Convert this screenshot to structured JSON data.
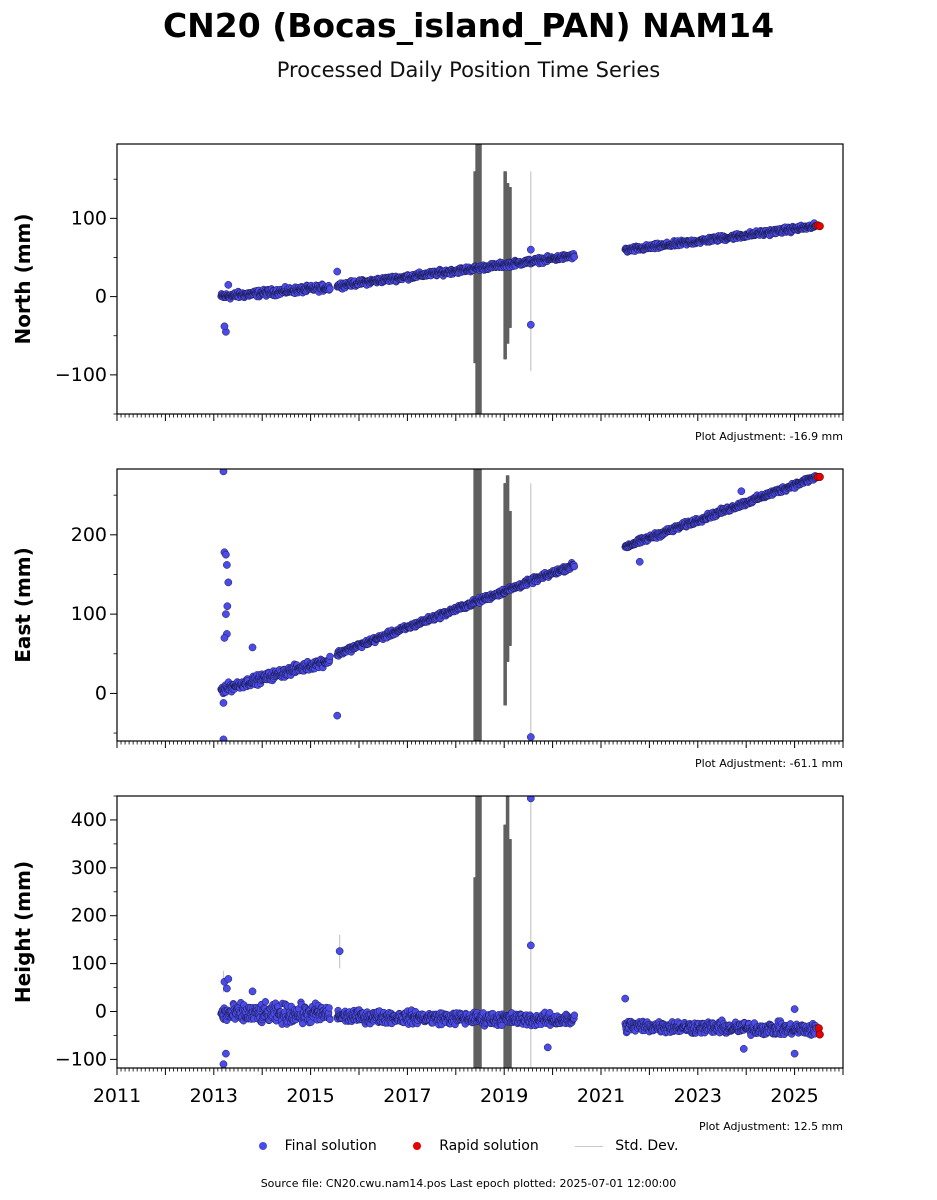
{
  "title": "CN20 (Bocas_island_PAN) NAM14",
  "subtitle": "Processed Daily Position Time Series",
  "legend": {
    "final": "Final solution",
    "rapid": "Rapid solution",
    "std": "Std. Dev."
  },
  "colors": {
    "final": "#4b4bea",
    "rapid": "#e60000",
    "std": "#c8c8c8",
    "std_dark": "#606060"
  },
  "source": "Source file: CN20.cwu.nam14.pos  Last epoch plotted: 2025-07-01 12:00:00",
  "chart_data": [
    {
      "type": "scatter",
      "ylabel": "North (mm)",
      "adjustment": "Plot Adjustment: -16.9 mm",
      "xlim": [
        2011,
        2026
      ],
      "ylim": [
        -150,
        195
      ],
      "yticks": [
        -100,
        0,
        100
      ],
      "ytick_labels": [
        "−100",
        "0",
        "100"
      ],
      "segments": [
        {
          "from": 2013.15,
          "to": 2015.4,
          "y0": 0,
          "y1": 12,
          "spread": 3
        },
        {
          "from": 2015.55,
          "to": 2020.45,
          "y0": 14,
          "y1": 52,
          "spread": 2.5
        },
        {
          "from": 2021.5,
          "to": 2025.45,
          "y0": 59,
          "y1": 90,
          "spread": 2.5
        }
      ],
      "outliers": [
        [
          2013.25,
          -45
        ],
        [
          2013.22,
          -38
        ],
        [
          2013.3,
          15
        ],
        [
          2015.55,
          32
        ],
        [
          2019.55,
          60
        ],
        [
          2019.55,
          -36
        ]
      ],
      "rapid": [
        [
          2025.48,
          91
        ],
        [
          2025.52,
          90
        ]
      ],
      "std_bars": [
        [
          2018.38,
          -85,
          160,
          "dark"
        ],
        [
          2018.42,
          -150,
          195,
          "dark"
        ],
        [
          2018.45,
          -150,
          195,
          "dark"
        ],
        [
          2018.48,
          -150,
          195,
          "dark"
        ],
        [
          2019.0,
          -80,
          160,
          "dark"
        ],
        [
          2019.05,
          -60,
          145,
          "dark"
        ],
        [
          2019.1,
          -40,
          140,
          "dark"
        ],
        [
          2019.55,
          -95,
          160,
          "light"
        ]
      ]
    },
    {
      "type": "scatter",
      "ylabel": "East (mm)",
      "adjustment": "Plot Adjustment: -61.1 mm",
      "xlim": [
        2011,
        2026
      ],
      "ylim": [
        -60,
        283
      ],
      "yticks": [
        0,
        100,
        200
      ],
      "ytick_labels": [
        "0",
        "100",
        "200"
      ],
      "segments": [
        {
          "from": 2013.15,
          "to": 2015.4,
          "y0": 5,
          "y1": 42,
          "spread": 4
        },
        {
          "from": 2015.55,
          "to": 2020.45,
          "y0": 50,
          "y1": 162,
          "spread": 2.5
        },
        {
          "from": 2021.5,
          "to": 2025.45,
          "y0": 185,
          "y1": 273,
          "spread": 2.5
        }
      ],
      "outliers": [
        [
          2013.2,
          280
        ],
        [
          2013.22,
          178
        ],
        [
          2013.25,
          175
        ],
        [
          2013.27,
          162
        ],
        [
          2013.3,
          140
        ],
        [
          2013.28,
          110
        ],
        [
          2013.25,
          100
        ],
        [
          2013.27,
          75
        ],
        [
          2013.22,
          70
        ],
        [
          2013.2,
          -58
        ],
        [
          2013.2,
          -12
        ],
        [
          2013.8,
          58
        ],
        [
          2015.55,
          -28
        ],
        [
          2019.55,
          -55
        ],
        [
          2021.8,
          166
        ],
        [
          2023.9,
          255
        ]
      ],
      "rapid": [
        [
          2025.48,
          273
        ],
        [
          2025.52,
          273
        ]
      ],
      "std_bars": [
        [
          2018.38,
          -60,
          283,
          "dark"
        ],
        [
          2018.42,
          -60,
          283,
          "dark"
        ],
        [
          2018.45,
          -60,
          283,
          "dark"
        ],
        [
          2018.48,
          -60,
          283,
          "dark"
        ],
        [
          2019.0,
          -15,
          265,
          "dark"
        ],
        [
          2019.05,
          40,
          275,
          "dark"
        ],
        [
          2019.1,
          60,
          230,
          "dark"
        ],
        [
          2019.55,
          -60,
          265,
          "light"
        ]
      ]
    },
    {
      "type": "scatter",
      "ylabel": "Height (mm)",
      "adjustment": "Plot Adjustment: 12.5 mm",
      "xlim": [
        2011,
        2026
      ],
      "ylim": [
        -118,
        450
      ],
      "yticks": [
        -100,
        0,
        100,
        200,
        300,
        400
      ],
      "ytick_labels": [
        "−100",
        "0",
        "100",
        "200",
        "300",
        "400"
      ],
      "xticks": [
        2011,
        2013,
        2015,
        2017,
        2019,
        2021,
        2023,
        2025
      ],
      "segments": [
        {
          "from": 2013.15,
          "to": 2015.4,
          "y0": -5,
          "y1": -5,
          "spread": 14
        },
        {
          "from": 2015.55,
          "to": 2020.45,
          "y0": -10,
          "y1": -18,
          "spread": 9
        },
        {
          "from": 2021.5,
          "to": 2025.45,
          "y0": -30,
          "y1": -38,
          "spread": 9
        }
      ],
      "outliers": [
        [
          2013.2,
          -110
        ],
        [
          2013.25,
          -88
        ],
        [
          2013.22,
          62
        ],
        [
          2013.27,
          48
        ],
        [
          2013.3,
          68
        ],
        [
          2013.8,
          42
        ],
        [
          2015.6,
          126
        ],
        [
          2019.55,
          445
        ],
        [
          2019.55,
          138
        ],
        [
          2019.9,
          -75
        ],
        [
          2021.5,
          27
        ],
        [
          2023.95,
          -78
        ],
        [
          2025.0,
          -88
        ],
        [
          2025.0,
          5
        ]
      ],
      "rapid": [
        [
          2025.5,
          -35
        ],
        [
          2025.52,
          -48
        ]
      ],
      "std_bars": [
        [
          2018.38,
          -118,
          280,
          "dark"
        ],
        [
          2018.42,
          -118,
          450,
          "dark"
        ],
        [
          2018.45,
          -118,
          450,
          "dark"
        ],
        [
          2018.48,
          -118,
          450,
          "dark"
        ],
        [
          2019.0,
          -118,
          390,
          "dark"
        ],
        [
          2019.05,
          -118,
          450,
          "dark"
        ],
        [
          2019.1,
          -118,
          360,
          "dark"
        ],
        [
          2019.55,
          -118,
          450,
          "light"
        ],
        [
          2015.6,
          90,
          160,
          "light"
        ],
        [
          2013.2,
          40,
          85,
          "light"
        ]
      ]
    }
  ]
}
